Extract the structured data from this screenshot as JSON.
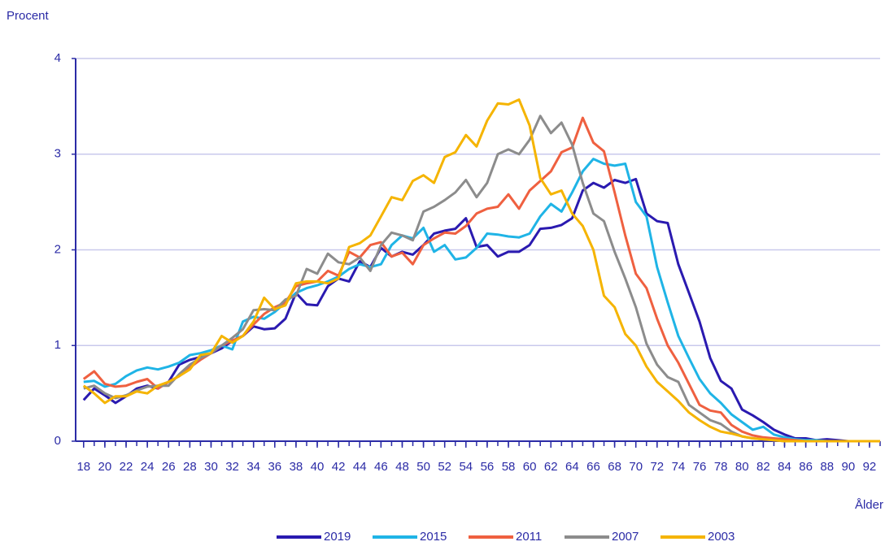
{
  "chart_data": {
    "type": "line",
    "y_label": "Procent",
    "x_label": "Ålder",
    "x": [
      18,
      19,
      20,
      21,
      22,
      23,
      24,
      25,
      26,
      27,
      28,
      29,
      30,
      31,
      32,
      33,
      34,
      35,
      36,
      37,
      38,
      39,
      40,
      41,
      42,
      43,
      44,
      45,
      46,
      47,
      48,
      49,
      50,
      51,
      52,
      53,
      54,
      55,
      56,
      57,
      58,
      59,
      60,
      61,
      62,
      63,
      64,
      65,
      66,
      67,
      68,
      69,
      70,
      71,
      72,
      73,
      74,
      75,
      76,
      77,
      78,
      79,
      80,
      81,
      82,
      83,
      84,
      85,
      86,
      87,
      88,
      89,
      90,
      91,
      92,
      93
    ],
    "xlim": [
      17.25,
      93
    ],
    "xticks": [
      18,
      20,
      22,
      24,
      26,
      28,
      30,
      32,
      34,
      36,
      38,
      40,
      42,
      44,
      46,
      48,
      50,
      52,
      54,
      56,
      58,
      60,
      62,
      64,
      66,
      68,
      70,
      72,
      74,
      76,
      78,
      80,
      82,
      84,
      86,
      88,
      90,
      92
    ],
    "ylim": [
      0,
      4
    ],
    "yticks": [
      0,
      1,
      2,
      3,
      4
    ],
    "grid": true,
    "legend": "bottom",
    "series": [
      {
        "name": "2019",
        "color": "#2a1ab0",
        "values": [
          0.43,
          0.55,
          0.48,
          0.4,
          0.47,
          0.55,
          0.58,
          0.55,
          0.62,
          0.8,
          0.85,
          0.88,
          0.92,
          0.97,
          1.05,
          1.1,
          1.2,
          1.17,
          1.18,
          1.28,
          1.55,
          1.43,
          1.42,
          1.62,
          1.7,
          1.67,
          1.88,
          1.82,
          2.02,
          1.93,
          1.98,
          1.95,
          2.05,
          2.17,
          2.2,
          2.22,
          2.33,
          2.03,
          2.05,
          1.93,
          1.98,
          1.98,
          2.05,
          2.22,
          2.23,
          2.26,
          2.33,
          2.62,
          2.7,
          2.65,
          2.73,
          2.7,
          2.74,
          2.38,
          2.3,
          2.28,
          1.85,
          1.55,
          1.25,
          0.87,
          0.63,
          0.55,
          0.33,
          0.27,
          0.2,
          0.12,
          0.07,
          0.03,
          0.03,
          0.01,
          0.02,
          0.01,
          0,
          0,
          0,
          0
        ]
      },
      {
        "name": "2015",
        "color": "#1fb4e6",
        "values": [
          0.62,
          0.63,
          0.57,
          0.6,
          0.68,
          0.74,
          0.77,
          0.75,
          0.78,
          0.82,
          0.9,
          0.92,
          0.95,
          1.0,
          0.96,
          1.25,
          1.3,
          1.28,
          1.35,
          1.45,
          1.55,
          1.6,
          1.63,
          1.67,
          1.72,
          1.8,
          1.85,
          1.82,
          1.85,
          2.05,
          2.15,
          2.12,
          2.23,
          1.98,
          2.05,
          1.9,
          1.92,
          2.02,
          2.17,
          2.16,
          2.14,
          2.13,
          2.17,
          2.35,
          2.48,
          2.4,
          2.6,
          2.82,
          2.95,
          2.9,
          2.88,
          2.9,
          2.5,
          2.35,
          1.82,
          1.45,
          1.1,
          0.87,
          0.65,
          0.5,
          0.4,
          0.28,
          0.2,
          0.12,
          0.15,
          0.07,
          0.04,
          0.02,
          0.01,
          0.01,
          0,
          0,
          0,
          0,
          0,
          0
        ]
      },
      {
        "name": "2011",
        "color": "#ef6040",
        "values": [
          0.65,
          0.73,
          0.6,
          0.57,
          0.58,
          0.62,
          0.65,
          0.55,
          0.62,
          0.68,
          0.77,
          0.85,
          0.92,
          1.0,
          1.05,
          1.1,
          1.22,
          1.33,
          1.4,
          1.45,
          1.62,
          1.65,
          1.67,
          1.78,
          1.73,
          1.98,
          1.92,
          2.05,
          2.08,
          1.93,
          1.97,
          1.85,
          2.05,
          2.12,
          2.18,
          2.17,
          2.25,
          2.38,
          2.43,
          2.45,
          2.58,
          2.43,
          2.62,
          2.72,
          2.82,
          3.02,
          3.07,
          3.38,
          3.12,
          3.03,
          2.6,
          2.15,
          1.75,
          1.6,
          1.28,
          1.0,
          0.82,
          0.6,
          0.38,
          0.32,
          0.3,
          0.17,
          0.1,
          0.06,
          0.04,
          0.03,
          0.02,
          0.01,
          0,
          0,
          0,
          0,
          0,
          0,
          0,
          0
        ]
      },
      {
        "name": "2007",
        "color": "#8c8c8c",
        "values": [
          0.55,
          0.58,
          0.5,
          0.45,
          0.48,
          0.53,
          0.57,
          0.58,
          0.58,
          0.7,
          0.8,
          0.87,
          0.92,
          1.0,
          1.08,
          1.17,
          1.37,
          1.38,
          1.37,
          1.48,
          1.52,
          1.8,
          1.75,
          1.96,
          1.87,
          1.85,
          1.92,
          1.78,
          2.05,
          2.18,
          2.15,
          2.1,
          2.4,
          2.45,
          2.52,
          2.6,
          2.73,
          2.55,
          2.7,
          3.0,
          3.05,
          3.0,
          3.15,
          3.4,
          3.22,
          3.33,
          3.1,
          2.7,
          2.38,
          2.3,
          1.98,
          1.7,
          1.4,
          1.02,
          0.8,
          0.67,
          0.62,
          0.38,
          0.3,
          0.22,
          0.18,
          0.1,
          0.05,
          0.03,
          0.02,
          0.01,
          0,
          0,
          0,
          0,
          0,
          0,
          0,
          0,
          0,
          0
        ]
      },
      {
        "name": "2003",
        "color": "#f5b400",
        "values": [
          0.58,
          0.5,
          0.4,
          0.47,
          0.47,
          0.52,
          0.5,
          0.58,
          0.62,
          0.68,
          0.75,
          0.9,
          0.92,
          1.1,
          1.03,
          1.1,
          1.25,
          1.5,
          1.38,
          1.42,
          1.65,
          1.67,
          1.67,
          1.65,
          1.7,
          2.03,
          2.07,
          2.15,
          2.35,
          2.55,
          2.52,
          2.72,
          2.78,
          2.7,
          2.97,
          3.02,
          3.2,
          3.08,
          3.35,
          3.53,
          3.52,
          3.57,
          3.3,
          2.75,
          2.58,
          2.62,
          2.38,
          2.25,
          2.0,
          1.52,
          1.4,
          1.12,
          1.0,
          0.78,
          0.62,
          0.52,
          0.42,
          0.3,
          0.22,
          0.15,
          0.1,
          0.08,
          0.05,
          0.03,
          0.02,
          0.01,
          0,
          0,
          0,
          0,
          0,
          0,
          0,
          0,
          0,
          0
        ]
      }
    ]
  }
}
